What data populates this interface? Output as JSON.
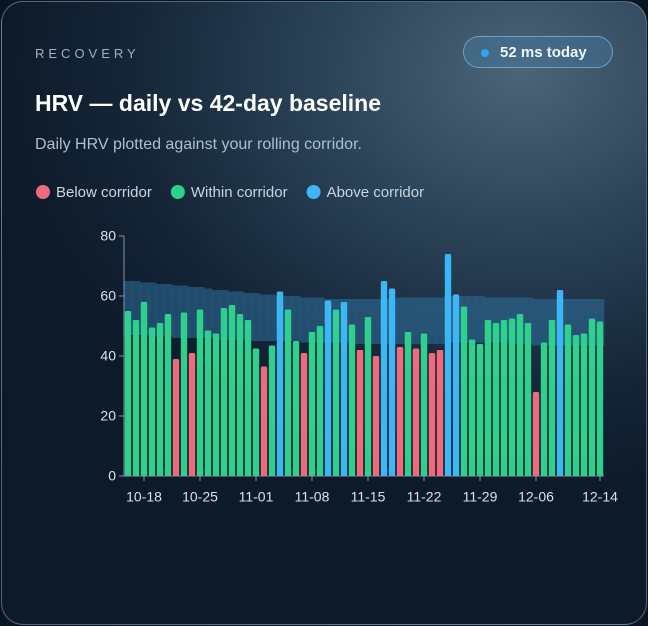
{
  "header": {
    "eyebrow": "RECOVERY",
    "badge": "52 ms today",
    "title": "HRV — daily vs 42-day baseline",
    "subtitle": "Daily HRV plotted against your rolling corridor."
  },
  "chart_data": {
    "type": "bar",
    "categories": [
      null,
      null,
      "10-18",
      null,
      null,
      null,
      null,
      null,
      null,
      "10-25",
      null,
      null,
      null,
      null,
      null,
      null,
      "11-01",
      null,
      null,
      null,
      null,
      null,
      null,
      "11-08",
      null,
      null,
      null,
      null,
      null,
      null,
      "11-15",
      null,
      null,
      null,
      null,
      null,
      null,
      "11-22",
      null,
      null,
      null,
      null,
      null,
      null,
      "11-29",
      null,
      null,
      null,
      null,
      null,
      null,
      "12-06",
      null,
      null,
      null,
      null,
      null,
      null,
      null,
      "12-14"
    ],
    "series": [
      {
        "name": "Below corridor",
        "color": "#f06a7c",
        "values": [
          null,
          null,
          null,
          null,
          null,
          null,
          39,
          null,
          41,
          null,
          null,
          null,
          null,
          null,
          null,
          null,
          null,
          36.5,
          null,
          null,
          null,
          null,
          41,
          null,
          null,
          null,
          null,
          null,
          null,
          42,
          null,
          40,
          null,
          null,
          43,
          null,
          42.5,
          null,
          41,
          42,
          null,
          null,
          null,
          null,
          null,
          null,
          null,
          null,
          null,
          null,
          null,
          28,
          null,
          null,
          null,
          null,
          null,
          null,
          null,
          null
        ]
      },
      {
        "name": "Within corridor",
        "color": "#2fcf8c",
        "values": [
          55,
          52,
          58,
          49.5,
          51,
          54,
          null,
          54.5,
          null,
          55.5,
          48.5,
          47.5,
          56,
          57,
          54,
          52,
          42.5,
          null,
          43.5,
          null,
          55.5,
          45,
          null,
          48,
          50,
          null,
          55.5,
          null,
          50.5,
          null,
          53,
          null,
          null,
          null,
          null,
          48,
          null,
          47.5,
          null,
          null,
          null,
          null,
          56.5,
          45.5,
          44,
          52,
          51,
          52,
          52.5,
          54,
          51,
          null,
          44.5,
          52,
          null,
          50.5,
          47,
          47.5,
          52.5,
          51.5
        ]
      },
      {
        "name": "Above corridor",
        "color": "#3cb6f4",
        "values": [
          null,
          null,
          null,
          null,
          null,
          null,
          null,
          null,
          null,
          null,
          null,
          null,
          null,
          null,
          null,
          null,
          null,
          null,
          null,
          61.5,
          null,
          null,
          null,
          null,
          null,
          58.5,
          null,
          58,
          null,
          null,
          null,
          null,
          65,
          62.5,
          null,
          null,
          null,
          null,
          null,
          null,
          74,
          60.5,
          null,
          null,
          null,
          null,
          null,
          null,
          null,
          null,
          null,
          null,
          null,
          null,
          62,
          null,
          null,
          null,
          null,
          null
        ]
      }
    ],
    "corridor": {
      "color": "#2f6f9c",
      "upper": [
        65,
        65,
        64.5,
        64.5,
        64,
        64,
        63.5,
        63.5,
        63,
        63,
        62.5,
        62,
        62,
        61.5,
        61.5,
        61,
        61,
        60.5,
        60.5,
        60,
        60,
        60,
        59.5,
        59.5,
        59.5,
        59,
        59,
        59,
        59,
        59,
        59,
        59,
        59,
        59,
        59.5,
        59.5,
        59.5,
        59.5,
        59.5,
        59.5,
        60,
        60,
        60,
        60,
        60,
        59.5,
        59.5,
        59.5,
        59.5,
        59.5,
        59.5,
        59,
        59,
        59,
        59,
        59,
        59,
        59,
        59,
        59
      ],
      "lower": [
        47,
        47,
        47,
        46.5,
        46.5,
        46.5,
        46,
        46,
        46,
        46,
        46,
        45.5,
        45.5,
        45.5,
        45.5,
        45,
        45,
        45,
        45,
        45,
        45,
        45,
        44.5,
        44.5,
        44.5,
        44.5,
        44.5,
        44.5,
        44,
        44,
        44,
        44,
        44,
        44,
        44,
        44,
        44,
        44,
        44,
        44,
        44.5,
        44.5,
        44.5,
        44.5,
        44.5,
        44.5,
        44.5,
        44.5,
        44,
        44,
        44,
        43.5,
        43.5,
        43.5,
        43.5,
        43.5,
        43.5,
        43.5,
        43.5,
        43.5
      ]
    },
    "ylim": [
      0,
      80
    ],
    "yticks": [
      0,
      20,
      40,
      60,
      80
    ]
  }
}
